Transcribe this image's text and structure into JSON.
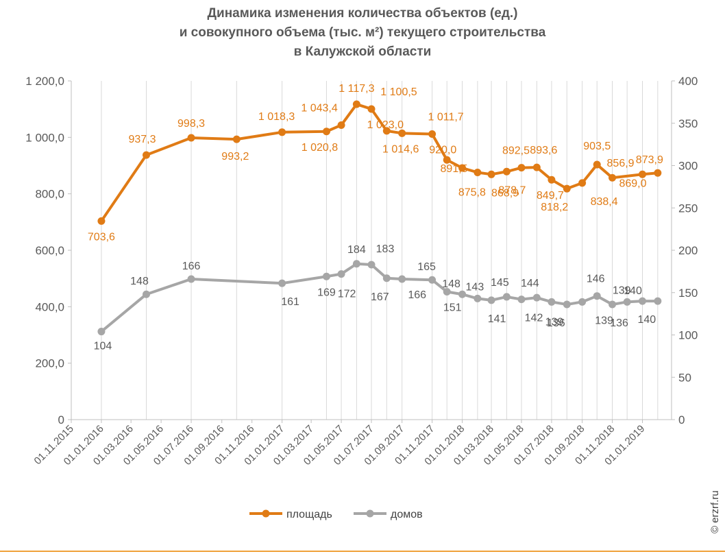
{
  "chart_data": {
    "type": "line",
    "title": [
      "Динамика изменения количества объектов (ед.)",
      "и совокупного объема (тыс. м²) текущего строительства",
      "в Калужской области"
    ],
    "x": [
      "01.01.2016",
      "01.04.2016",
      "01.07.2016",
      "01.10.2016",
      "01.01.2017",
      "01.04.2017",
      "01.05.2017",
      "01.06.2017",
      "01.07.2017",
      "01.08.2017",
      "01.09.2017",
      "01.11.2017",
      "01.12.2017",
      "01.01.2018",
      "01.02.2018",
      "01.03.2018",
      "01.04.2018",
      "01.05.2018",
      "01.06.2018",
      "01.07.2018",
      "01.08.2018",
      "01.09.2018",
      "01.10.2018",
      "01.11.2018",
      "01.12.2018",
      "01.01.2019",
      "01.02.2019"
    ],
    "x_tick_labels": [
      "01.11.2015",
      "01.01.2016",
      "01.03.2016",
      "01.05.2016",
      "01.07.2016",
      "01.09.2016",
      "01.11.2016",
      "01.01.2017",
      "01.03.2017",
      "01.05.2017",
      "01.07.2017",
      "01.09.2017",
      "01.11.2017",
      "01.01.2018",
      "01.03.2018",
      "01.05.2018",
      "01.07.2018",
      "01.09.2018",
      "01.11.2018",
      "01.01.2019"
    ],
    "series": [
      {
        "name": "площадь",
        "axis": "left",
        "color": "#e07b15",
        "values": [
          703.6,
          937.3,
          998.3,
          993.2,
          1018.3,
          1020.8,
          1043.4,
          1117.3,
          1100.5,
          1023.0,
          1014.6,
          1011.7,
          920.0,
          891.5,
          875.8,
          868.9,
          878.7,
          892.5,
          893.6,
          849.7,
          818.2,
          838.4,
          903.5,
          856.9,
          null,
          869.0,
          873.9
        ],
        "labels": [
          "703,6",
          "937,3",
          "998,3",
          "993,2",
          "1 018,3",
          "1 020,8",
          "1 043,4",
          "1 117,3",
          "1 100,5",
          "1 023,0",
          "1 014,6",
          "1 011,7",
          "920,0",
          "891,5",
          "875,8",
          "868,9",
          "878,7",
          "892,5",
          "893,6",
          "849,7",
          "818,2",
          "838,4",
          "903,5",
          "856,9",
          "",
          "869,0",
          "873,9"
        ]
      },
      {
        "name": "домов",
        "axis": "right",
        "color": "#a6a6a6",
        "values": [
          104,
          148,
          166,
          null,
          161,
          169,
          172,
          184,
          183,
          167,
          166,
          165,
          151,
          148,
          143,
          141,
          145,
          142,
          144,
          139,
          136,
          139,
          146,
          136,
          139,
          140,
          140
        ],
        "labels": [
          "104",
          "148",
          "166",
          "",
          "161",
          "169",
          "172",
          "184",
          "183",
          "167",
          "166",
          "165",
          "151",
          "148",
          "143",
          "141",
          "145",
          "142",
          "144",
          "139",
          "136",
          "139",
          "146",
          "136",
          "139",
          "140",
          "140"
        ]
      }
    ],
    "left_axis": {
      "min": 0,
      "max": 1200,
      "ticks": [
        "0",
        "200,0",
        "400,0",
        "600,0",
        "800,0",
        "1 000,0",
        "1 200,0"
      ]
    },
    "right_axis": {
      "min": 0,
      "max": 400,
      "ticks": [
        "0",
        "50",
        "100",
        "150",
        "200",
        "250",
        "300",
        "350",
        "400"
      ]
    },
    "grid": "vertical",
    "legend": "bottom"
  },
  "credit": "© erzrf.ru"
}
